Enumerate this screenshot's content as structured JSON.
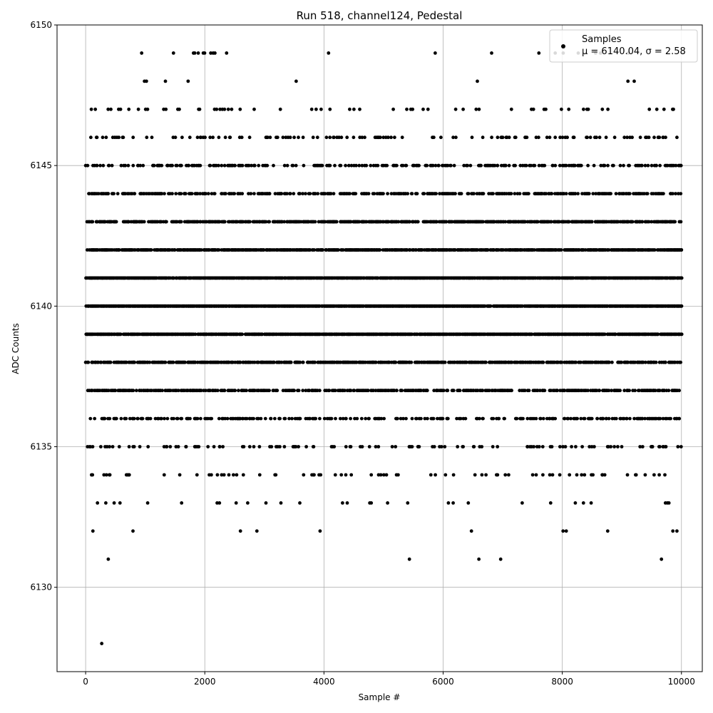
{
  "chart_data": {
    "type": "scatter",
    "title": "Run 518, channel124, Pedestal",
    "xlabel": "Sample #",
    "ylabel": "ADC Counts",
    "xlim": [
      -480,
      10350
    ],
    "ylim": [
      6127,
      6150
    ],
    "xticks": [
      0,
      2000,
      4000,
      6000,
      8000,
      10000
    ],
    "yticks": [
      6130,
      6135,
      6140,
      6145,
      6150
    ],
    "grid": true,
    "legend_position": "top-right",
    "series": [
      {
        "name": "Samples",
        "label_line2": "μ = 6140.04, σ = 2.58",
        "color": "#000000",
        "n_samples": 10000,
        "mean": 6140.04,
        "sigma": 2.58,
        "level_density": {
          "6131": 0.03,
          "6132": 0.15,
          "6133": 0.4,
          "6134": 0.8,
          "6135": 1.5,
          "6136": 3,
          "6137": 5,
          "6138": 7,
          "6139": 9,
          "6140": 10,
          "6141": 9,
          "6142": 8,
          "6143": 6.5,
          "6144": 4,
          "6145": 3,
          "6146": 1.5,
          "6147": 0.7,
          "6148": 0.08,
          "6149": 0.15
        },
        "outliers": [
          {
            "x": 270,
            "y": 6128
          },
          {
            "x": 380,
            "y": 6131
          },
          {
            "x": 6600,
            "y": 6131
          },
          {
            "x": 940,
            "y": 6149
          },
          {
            "x": 1810,
            "y": 6149
          },
          {
            "x": 1890,
            "y": 6149
          },
          {
            "x": 2100,
            "y": 6149
          },
          {
            "x": 2140,
            "y": 6149
          },
          {
            "x": 2170,
            "y": 6149
          },
          {
            "x": 1020,
            "y": 6148
          },
          {
            "x": 1720,
            "y": 6148
          }
        ]
      }
    ]
  }
}
